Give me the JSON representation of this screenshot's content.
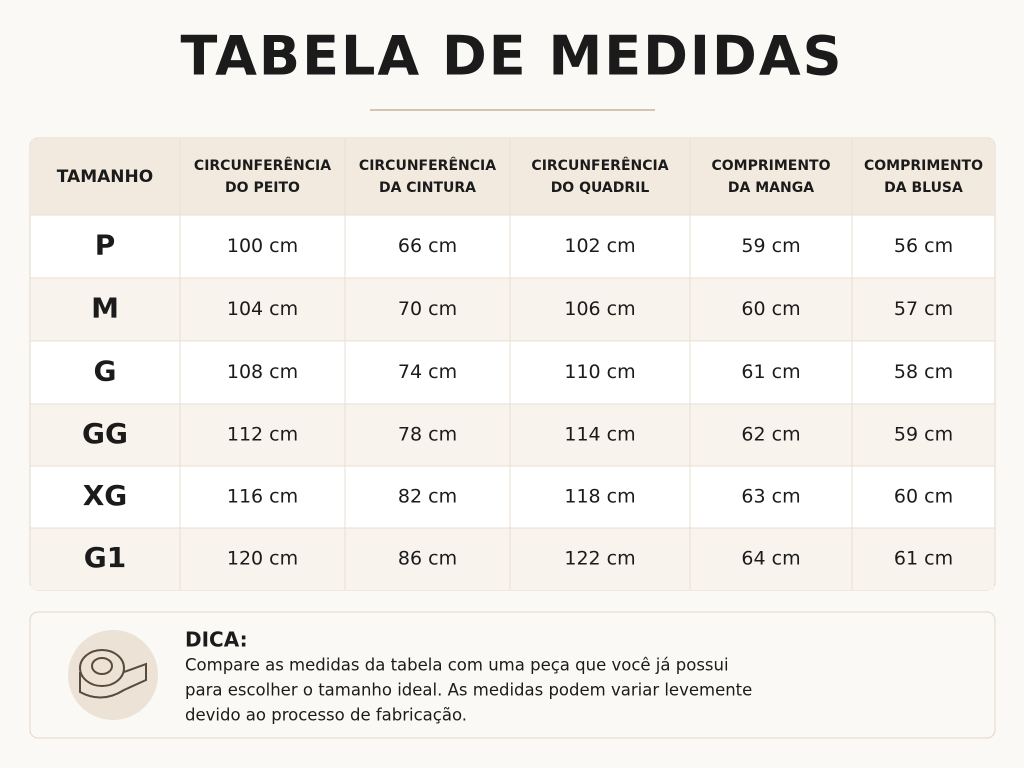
{
  "title": "TABELA DE MEDIDAS",
  "table": {
    "headers": [
      [
        "TAMANHO"
      ],
      [
        "CIRCUNFERÊNCIA",
        "DO PEITO"
      ],
      [
        "CIRCUNFERÊNCIA",
        "DA CINTURA"
      ],
      [
        "CIRCUNFERÊNCIA",
        "DO QUADRIL"
      ],
      [
        "COMPRIMENTO",
        "DA MANGA"
      ],
      [
        "COMPRIMENTO",
        "DA BLUSA"
      ]
    ],
    "rows": [
      [
        "P",
        "100 cm",
        "66 cm",
        "102 cm",
        "59 cm",
        "56 cm"
      ],
      [
        "M",
        "104 cm",
        "70 cm",
        "106 cm",
        "60 cm",
        "57 cm"
      ],
      [
        "G",
        "108 cm",
        "74 cm",
        "110 cm",
        "61 cm",
        "58 cm"
      ],
      [
        "GG",
        "112 cm",
        "78 cm",
        "114 cm",
        "62 cm",
        "59 cm"
      ],
      [
        "XG",
        "116 cm",
        "82 cm",
        "118 cm",
        "63 cm",
        "60 cm"
      ],
      [
        "G1",
        "120 cm",
        "86 cm",
        "122 cm",
        "64 cm",
        "61 cm"
      ]
    ]
  },
  "tip": {
    "title": "DICA:",
    "lines": [
      "Compare as medidas da tabela com uma peça que você já possui",
      "para escolher o tamanho ideal. As medidas podem variar levemente",
      "devido ao processo de fabricação."
    ]
  }
}
